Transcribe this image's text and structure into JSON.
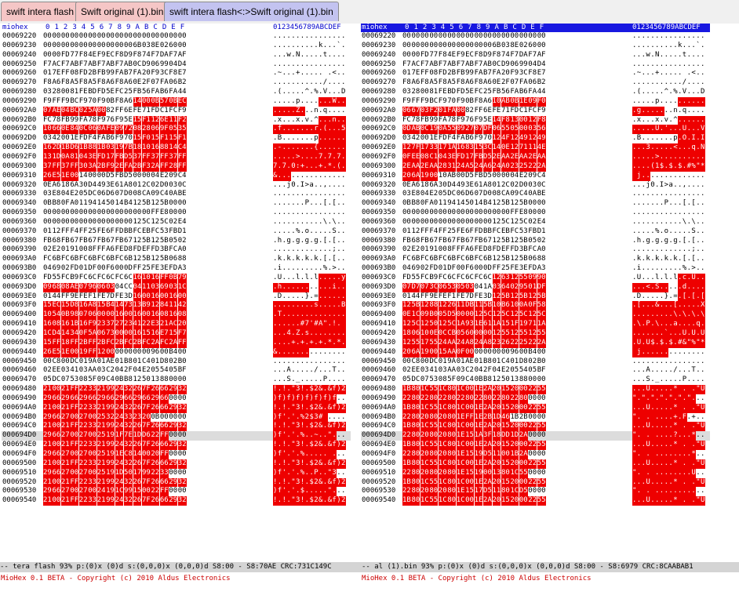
{
  "tabs": [
    {
      "label": "swift intera flash",
      "kind": "file"
    },
    {
      "label": "Swift original (1).bin",
      "kind": "file"
    },
    {
      "label": "swift intera flash<:>Swift original (1).bin",
      "kind": "diff"
    }
  ],
  "header": {
    "name": "miohex",
    "cols": [
      "0",
      "1",
      "2",
      "3",
      "4",
      "5",
      "6",
      "7",
      "8",
      "9",
      "A",
      "B",
      "C",
      "D",
      "E",
      "F"
    ],
    "ascii_title": "0123456789ABCDEF"
  },
  "selected_row_offset": "000694D0",
  "left_rows": [
    [
      "00069220",
      "00 00 00 00 00 00 00 00 00 00 00 00 00 00 00 00",
      ""
    ],
    [
      "00069230",
      "00 00 00 00 00 00 00 00 00 00 6B 03 8E 02 60 00",
      ""
    ],
    [
      "00069240",
      "00 00 FD 77 F8 4E F9 EC F8 D9 F8 74 F7 DA F7 AF",
      ""
    ],
    [
      "00069250",
      "F7 AC F7 AB F7 AB F7 AB F7 AB 0C D9 06 99 04 D4",
      ""
    ],
    [
      "00069260",
      "01 7E FF 08 FD 2B FB 99 FA B7 FA 20 F9 3C F8 E7",
      ""
    ],
    [
      "00069270",
      "F8 A6 F8 A5 F8 A5 F8 A6 F8 A6 0E 2F 07 FA 06 B2",
      ""
    ],
    [
      "00069280",
      "03 28 00 81 FE BD FD 5E FC 25 FB 56 FA B6 FA 44",
      ""
    ],
    [
      "00069290",
      "F9 FF F9 BC F9 70 F9 0B F8 A6 14 00 0B 57 0B EC",
      "0000000000111111"
    ],
    [
      "000692A0",
      "07 AE 04 BC 02 5A 00 82 FF 6E FE 71 FD C1 FC F9",
      "1111111000000000"
    ],
    [
      "000692B0",
      "FC 78 FB 99 FA 78 F9 76 F9 5E 15 F1 12 6E 11 F2",
      "0000000000111111"
    ],
    [
      "000692C0",
      "10 66 0E 84 0C 06 0A FE 09 72 08 28 06 9F 05 35",
      "1111111111111111"
    ],
    [
      "000692D0",
      "03 42 00 1E FD F4 FA B6 F9 70 15 F0 15 F1 15 F1",
      "0000000000111111"
    ],
    [
      "000692E0",
      "16 2D 1B D6 1B 88 1B 03 19 7B 18 10 16 88 14 C4",
      "1111111111111111"
    ],
    [
      "000692F0",
      "13 1D 0A 81 04 3E FD 17 FB D5 37 FF 37 FF 37 FF",
      "1111111111111111"
    ],
    [
      "00069300",
      "37 FF 37 FF 30 3A 2B F9 2E FA 2B F3 2A FF 28 FF",
      "1111111111111111"
    ],
    [
      "00069310",
      "26 E5 1E 00 14 00 00 D5 FB D5 00 00 04 E2 09 C4",
      "1111000000000000"
    ],
    [
      "00069320",
      "0E A6 18 6A 30 D4 49 3E 61 A8 01 2C 02 D0 03 0C",
      ""
    ],
    [
      "00069330",
      "03 E8 04 E2 05 DC 06 D6 07 D0 08 CA 09 C4 0A BE",
      ""
    ],
    [
      "00069340",
      "0B B8 0F A0 11 94 14 50 14 B4 12 5B 12 5B 00 00",
      ""
    ],
    [
      "00069350",
      "00 00 00 00 00 00 00 00 00 00 00 00 FF E8 00 00",
      ""
    ],
    [
      "00069360",
      "00 00 00 00 00 00 00 00 00 00 12 5C 12 5C 02 E4",
      ""
    ],
    [
      "00069370",
      "01 12 FF F4 FF 25 FE 6F FD BB FC EB FC 53 FB D1",
      ""
    ],
    [
      "00069380",
      "FB 68 FB 67 FB 67 FB 67 FB 67 12 5B 12 5B 05 02",
      ""
    ],
    [
      "00069390",
      "02 E2 01 91 00 8F FF A6 FE D8 FD EF FD 3B FC A0",
      ""
    ],
    [
      "000693A0",
      "FC 6B FC 6B FC 6B FC 6B FC 6B 12 5B 12 5B 06 88",
      ""
    ],
    [
      "000693B0",
      "04 69 02 FD 01 DF 00 F6 00 0D FF 25 FE 3E FD A3",
      ""
    ],
    [
      "000693C0",
      "FD 55 FC B9 FC 6C FC 6C FC 6C 16 10 16 FF 0B 79",
      "0000000000111111"
    ],
    [
      "000693D0",
      "09 68 08 AE 07 96 06 03 04 CC 04 11 03 69 03 1C",
      "1111111100111111"
    ],
    [
      "000693E0",
      "01 44 FF 9E FE F1 FE 7D FE 3D 16 00 16 00 16 00",
      "0000000000111111"
    ],
    [
      "000693F0",
      "15 EC 15 D8 16 A8 15 B4 14 73 13 B9 12 84 11 42",
      "1111111111111111"
    ],
    [
      "00069400",
      "10 54 0B 98 07 06 00 00 16 00 16 00 16 08 16 08",
      "1111111111111111"
    ],
    [
      "00069410",
      "16 08 16 1B 16 F9 23 37 27 23 41 22 E3 21 AC 20",
      "1111111111111111"
    ],
    [
      "00069420",
      "1C D4 14 34 0F 5A 06 73 00 00 16 15 16 E7 15 F7",
      "1111111111111111"
    ],
    [
      "00069430",
      "15 FF 18 FF 2B FF 2B FC 2B FC 2B FC 2A FC 2A FF",
      "1111111111111111"
    ],
    [
      "00069440",
      "26 E5 1E 00 19 FF 12 00 00 00 00 00 96 00 B4 00",
      "1111111100000000"
    ],
    [
      "00069450",
      "00 C8 00 DC 01 9A 01 AE 01 B8 01 C4 01 D8 02 B0",
      ""
    ],
    [
      "00069460",
      "02 EE 03 41 03 AA 03 C2 04 2F 04 E2 05 54 05 BF",
      ""
    ],
    [
      "00069470",
      "05 DC 07 53 08 5F 09 C4 0B B8 12 50 13 88 00 00",
      ""
    ],
    [
      "00069480",
      "21 00 21 FF 22 33 21 99 24 32 26 7F 26 66 29 32",
      "1111111111111111"
    ],
    [
      "00069490",
      "29 66 29 66 29 66 29 66 29 66 29 66 29 66 00 00",
      "1111111111111100"
    ],
    [
      "000694A0",
      "21 00 21 FF 22 33 21 99 24 32 26 7F 26 66 29 32",
      "1111111111111111"
    ],
    [
      "000694B0",
      "29 66 27 00 27 00 25 32 24 33 23 20 0B 00 00 00",
      "1111111111110000"
    ],
    [
      "000694C0",
      "21 00 21 FF 22 33 21 99 24 32 26 7F 26 66 29 32",
      "1111111111111111"
    ],
    [
      "000694D0",
      "29 66 27 00 27 00 25 19 1F 7E 1D D6 22 FF 00 00",
      "1111111111111100"
    ],
    [
      "000694E0",
      "21 00 21 FF 22 33 21 99 24 32 26 7F 26 66 29 32",
      "1111111111111111"
    ],
    [
      "000694F0",
      "29 66 27 00 27 00 25 19 1E C8 14 00 20 FF 00 00",
      "1111111111111100"
    ],
    [
      "00069500",
      "21 00 21 FF 22 33 21 99 24 32 26 7F 26 66 29 32",
      "1111111111111111"
    ],
    [
      "00069510",
      "29 66 27 00 27 00 25 19 1D 50 17 99 22 33 00 00",
      "1111111111111100"
    ],
    [
      "00069520",
      "21 00 21 FF 22 33 21 99 24 32 26 7F 26 66 29 32",
      "1111111111111111"
    ],
    [
      "00069530",
      "29 66 27 00 27 00 24 19 1C 99 15 00 22 FF 00 00",
      "1111111111111100"
    ],
    [
      "00069540",
      "21 00 21 FF 22 33 21 99 24 32 26 7F 26 66 29 32",
      "1111111111111111"
    ]
  ],
  "right_rows": [
    [
      "00069220",
      "00 00 00 00 00 00 00 00 00 00 00 00 00 00 00 00",
      ""
    ],
    [
      "00069230",
      "00 00 00 00 00 00 00 00 00 00 6B 03 8E 02 60 00",
      ""
    ],
    [
      "00069240",
      "00 00 FD 77 F8 4E F9 EC F8 D9 F8 74 F7 DA F7 AF",
      ""
    ],
    [
      "00069250",
      "F7 AC F7 AB F7 AB F7 AB F7 AB 0C D9 06 99 04 D4",
      ""
    ],
    [
      "00069260",
      "01 7E FF 08 FD 2B FB 99 FA B7 FA 20 F9 3C F8 E7",
      ""
    ],
    [
      "00069270",
      "F8 A6 F8 A5 F8 A5 F8 A6 F8 A6 0E 2F 07 FA 06 B2",
      ""
    ],
    [
      "00069280",
      "03 28 00 81 FE BD FD 5E FC 25 FB 56 FA B6 FA 44",
      ""
    ],
    [
      "00069290",
      "F9 FF F9 BC F9 70 F9 0B F8 A6 10 AB 0B 1E 09 F0",
      "0000000000111111"
    ],
    [
      "000692A0",
      "06 67 03 F2 01 FA 00 82 FF 6E FE 71 FD C1 FC F9",
      "1111111000000000"
    ],
    [
      "000692B0",
      "FC 78 FB 99 FA 78 F9 76 F9 5E 14 F8 13 00 12 F8",
      "0000000000111111"
    ],
    [
      "000692C0",
      "0D AB 0C 19 0A 55 09 27 07 DF 06 55 05 00 03 56",
      "1111111111111111"
    ],
    [
      "000692D0",
      "03 42 00 1E FD F4 FA B6 F9 70 12 4F 12 49 12 49",
      "0000000000111111"
    ],
    [
      "000692E0",
      "12 7F 17 33 17 1A 16 83 15 3C 14 0E 12 71 11 4E",
      "1111111111111111"
    ],
    [
      "000692F0",
      "0F EE 08 C1 04 3E FD 17 FB D5 2E AA 2E AA 2E AA",
      "1111111111111111"
    ],
    [
      "00069300",
      "2E AA 2E AA 28 31 24 A5 24 A6 24 A0 23 25 22 2A",
      "1111111111111111"
    ],
    [
      "00069310",
      "20 6A 19 00 10 AB 00 D5 FB D5 00 00 04 E2 09 C4",
      "1111000000000000"
    ],
    [
      "00069320",
      "0E A6 18 6A 30 D4 49 3E 61 A8 01 2C 02 D0 03 0C",
      ""
    ],
    [
      "00069330",
      "03 E8 04 E2 05 DC 06 D6 07 D0 08 CA 09 C4 0A BE",
      ""
    ],
    [
      "00069340",
      "0B B8 0F A0 11 94 14 50 14 B4 12 5B 12 5B 00 00",
      ""
    ],
    [
      "00069350",
      "00 00 00 00 00 00 00 00 00 00 00 00 FF E8 00 00",
      ""
    ],
    [
      "00069360",
      "00 00 00 00 00 00 00 00 00 00 12 5C 12 5C 02 E4",
      ""
    ],
    [
      "00069370",
      "01 12 FF F4 FF 25 FE 6F FD BB FC EB FC 53 FB D1",
      ""
    ],
    [
      "00069380",
      "FB 68 FB 67 FB 67 FB 67 FB 67 12 5B 12 5B 05 02",
      ""
    ],
    [
      "00069390",
      "02 E2 01 91 00 8F FF A6 FE D8 FD EF FD 3B FC A0",
      ""
    ],
    [
      "000693A0",
      "FC 6B FC 6B FC 6B FC 6B FC 6B 12 5B 12 5B 06 88",
      ""
    ],
    [
      "000693B0",
      "04 69 02 FD 01 DF 00 F6 00 0D FF 25 FE 3E FD A3",
      ""
    ],
    [
      "000693C0",
      "FD 55 FC B9 FC 6C FC 6C FC 6C 12 63 12 55 09 90",
      "0000000000111111"
    ],
    [
      "000693D0",
      "07 D7 07 3C 06 53 05 03 04 1A 03 64 02 95 01 DF",
      "1111111100111111"
    ],
    [
      "000693E0",
      "01 44 FF 9E FE F1 FE 7D FE 3D 12 5B 12 5B 12 5B",
      "0000000000111111"
    ],
    [
      "000693F0",
      "12 5B 12 88 12 26 11 DB 11 5B 10 B6 10 0A 0F 58",
      "1111111111111111"
    ],
    [
      "00069400",
      "0E 1C 09 B0 05 D5 00 00 12 5C 12 5C 12 5C 12 5C",
      "1111111111111111"
    ],
    [
      "00069410",
      "12 5C 12 50 12 5C 1A 93 1E 61 1A 15 1F 19 71 1A",
      "1111111111111111"
    ],
    [
      "00069420",
      "18 06 10 0E 0C CB 05 60 00 00 12 55 12 55 12 55",
      "1111111111111111"
    ],
    [
      "00069430",
      "12 55 17 55 24 AA 24 A8 24 A8 23 26 22 25 22 2A",
      "1111111111111111"
    ],
    [
      "00069440",
      "20 6A 19 00 15 AA 0F 00 00 00 00 00 96 00 B4 00",
      "1111111100000000"
    ],
    [
      "00069450",
      "00 C8 00 DC 01 9A 01 AE 01 B8 01 C4 01 D8 02 B0",
      ""
    ],
    [
      "00069460",
      "02 EE 03 41 03 AA 03 C2 04 2F 04 E2 05 54 05 BF",
      ""
    ],
    [
      "00069470",
      "05 DC 07 53 08 5F 09 C4 0B B8 12 50 13 88 00 00",
      ""
    ],
    [
      "00069480",
      "1B 80 1C 55 1C 80 1C 00 1E 2A 20 15 20 00 22 55",
      "1111111111111111"
    ],
    [
      "00069490",
      "22 80 22 80 22 80 22 80 22 80 22 80 22 80 00 00",
      "1111111111111100"
    ],
    [
      "000694A0",
      "1B 80 1C 55 1C 80 1C 00 1E 2A 20 15 20 00 22 55",
      "1111111111111111"
    ],
    [
      "000694B0",
      "22 80 20 80 20 80 1E FF 1E 2B 1D 46 1B 2B 00 00",
      "1111111111110000"
    ],
    [
      "000694C0",
      "1B 80 1C 55 1C 80 1C 00 1E 2A 20 15 20 00 22 55",
      "1111111111111111"
    ],
    [
      "000694D0",
      "22 80 20 80 20 80 1E 15 1A 3F 18 DD 1D 2A 00 00",
      "1111111111111100"
    ],
    [
      "000694E0",
      "1B 80 1C 55 1C 80 1C 00 1E 2A 20 15 20 00 22 55",
      "1111111111111111"
    ],
    [
      "000694F0",
      "22 80 20 80 20 80 1E 15 19 D5 11 00 1B 2A 00 00",
      "1111111111111100"
    ],
    [
      "00069500",
      "1B 80 1C 55 1C 80 1C 00 1E 2A 20 15 20 00 22 55",
      "1111111111111111"
    ],
    [
      "00069510",
      "22 80 20 80 20 80 1E 15 19 00 13 80 1C 55 00 00",
      "1111111111111100"
    ],
    [
      "00069520",
      "1B 80 1C 55 1C 80 1C 00 1E 2A 20 15 20 00 22 55",
      "1111111111111111"
    ],
    [
      "00069530",
      "22 80 20 80 20 80 1E 15 17 D5 11 80 1C D5 00 00",
      "1111111111111100"
    ],
    [
      "00069540",
      "1B 80 1C 55 1C 80 1C 00 1E 2A 20 15 20 00 22 55",
      "1111111111111111"
    ]
  ],
  "status": {
    "left": "-- tera flash 93% p:(0)x (0)d s:(0,0,0)x (0,0,0)d S8:00 - S8:70AE CRC:731C149C",
    "right": "-- al (1).bin 93% p:(0)x (0)d s:(0,0,0)x (0,0,0)d S8:00 - S8:6979 CRC:8CAABAB1"
  },
  "copyright": {
    "left": "MioHex 0.1 BETA - Copyright (c) 2010 Aldus Electronics",
    "right": "MioHex 0.1 BETA - Copyright (c) 2010 Aldus Electronics"
  },
  "colors": {
    "diff_bg": "#ee0000",
    "diff_fg": "#ffffff",
    "header_blue": "#1818e0",
    "tab_file": "#f5c6c6",
    "tab_diff": "#c3c3f0",
    "copyright_red": "#cc0000"
  }
}
